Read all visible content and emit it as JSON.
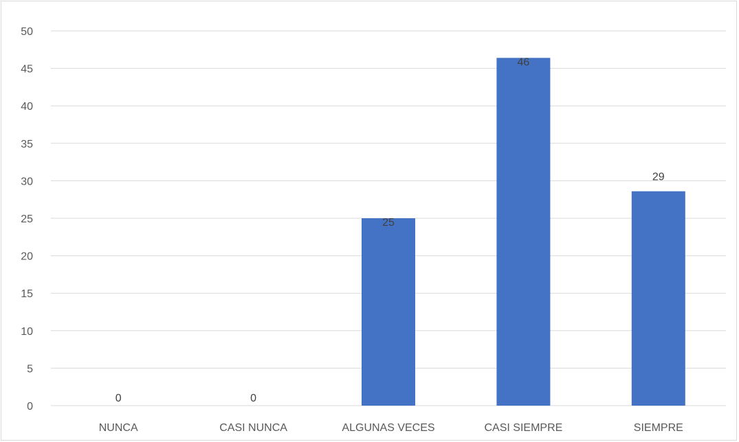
{
  "chart_data": {
    "type": "bar",
    "categories": [
      "NUNCA",
      "CASI NUNCA",
      "ALGUNAS VECES",
      "CASI SIEMPRE",
      "SIEMPRE"
    ],
    "values": [
      0,
      0,
      25,
      46.4,
      28.6
    ],
    "data_labels": [
      "0",
      "0",
      "25",
      "46",
      "29"
    ],
    "y_ticks": [
      "0",
      "5",
      "10",
      "15",
      "20",
      "25",
      "30",
      "35",
      "40",
      "45",
      "50"
    ],
    "ylim": [
      0,
      50
    ],
    "grid": true,
    "legend": "none",
    "bar_color": "#4472c4",
    "grid_color": "#d9d9d9"
  }
}
